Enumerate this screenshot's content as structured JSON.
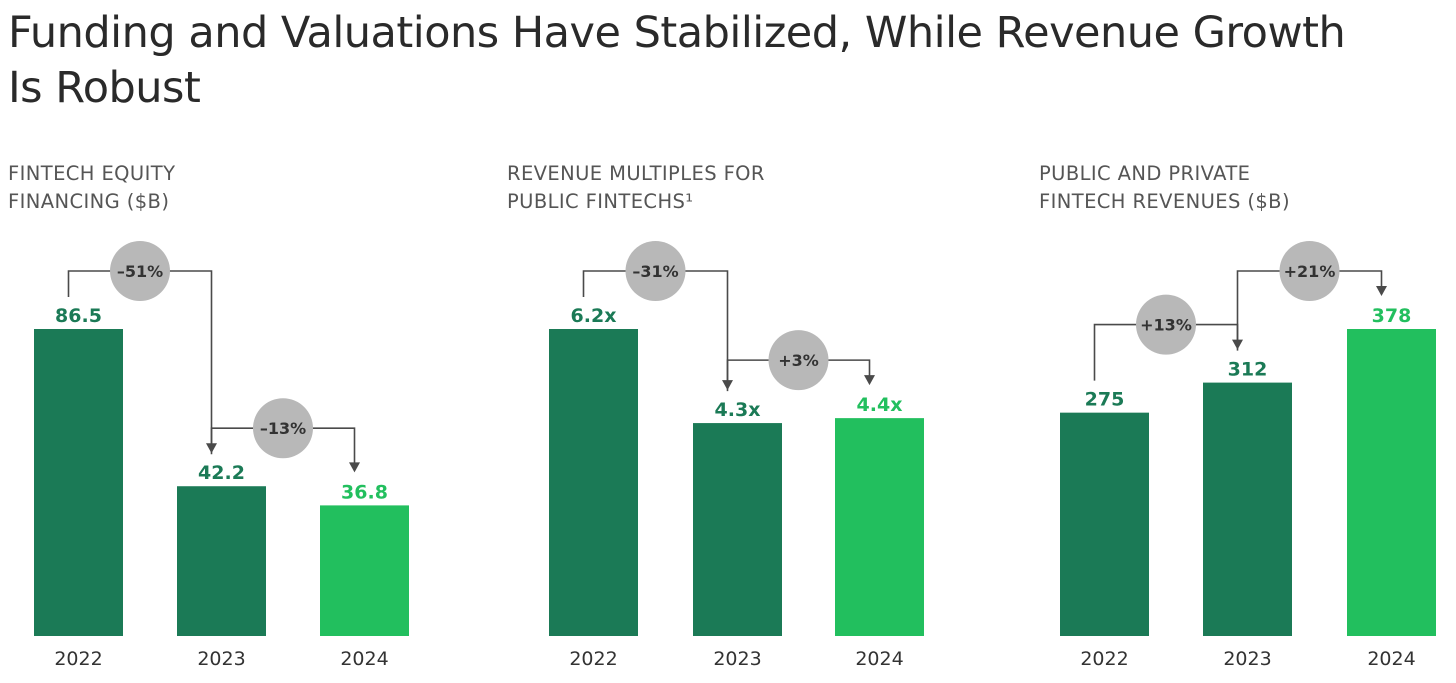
{
  "page": {
    "title_lines": [
      "Funding and Valuations Have Stabilized, While Revenue Growth",
      "Is Robust"
    ]
  },
  "colors": {
    "dark_green": "#1b7a56",
    "light_green": "#22bf5e",
    "badge": "#b8b8b8",
    "connector": "#4a4a4a"
  },
  "chart_data": [
    {
      "type": "bar",
      "title_lines": [
        "FINTECH EQUITY",
        "FINANCING ($B)"
      ],
      "categories": [
        "2022",
        "2023",
        "2024"
      ],
      "values": [
        86.5,
        42.2,
        36.8
      ],
      "value_labels": [
        "86.5",
        "42.2",
        "36.8"
      ],
      "highlight": [
        false,
        false,
        true
      ],
      "changes": [
        {
          "from": 0,
          "to": 1,
          "label": "–51%"
        },
        {
          "from": 1,
          "to": 2,
          "label": "–13%"
        }
      ]
    },
    {
      "type": "bar",
      "title_lines": [
        "REVENUE MULTIPLES FOR",
        "PUBLIC FINTECHS¹"
      ],
      "categories": [
        "2022",
        "2023",
        "2024"
      ],
      "values": [
        6.2,
        4.3,
        4.4
      ],
      "value_labels": [
        "6.2x",
        "4.3x",
        "4.4x"
      ],
      "highlight": [
        false,
        false,
        true
      ],
      "changes": [
        {
          "from": 0,
          "to": 1,
          "label": "–31%"
        },
        {
          "from": 1,
          "to": 2,
          "label": "+3%"
        }
      ]
    },
    {
      "type": "bar",
      "title_lines": [
        "PUBLIC AND PRIVATE",
        "FINTECH REVENUES ($B)"
      ],
      "categories": [
        "2022",
        "2023",
        "2024"
      ],
      "values": [
        275,
        312,
        378
      ],
      "value_labels": [
        "275",
        "312",
        "378"
      ],
      "highlight": [
        false,
        false,
        true
      ],
      "changes": [
        {
          "from": 0,
          "to": 1,
          "label": "+13%"
        },
        {
          "from": 1,
          "to": 2,
          "label": "+21%"
        }
      ]
    }
  ]
}
